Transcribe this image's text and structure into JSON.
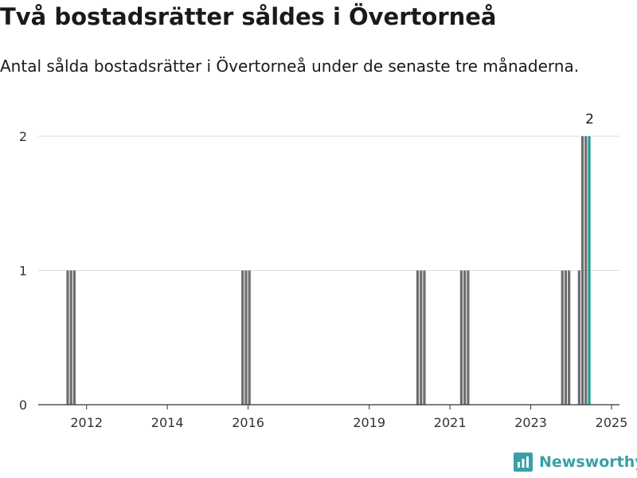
{
  "header": {
    "title": "Två bostadsrätter såldes i Övertorneå",
    "subtitle": "Antal sålda bostadsrätter i Övertorneå under de senaste tre månaderna."
  },
  "brand": {
    "name": "Newsworthy",
    "icon": "newsworthy-logo-icon",
    "color": "#3aa0a6"
  },
  "colors": {
    "bar": "#6d6e71",
    "highlight": "#1a9e8f",
    "grid": "#dddddd",
    "axis": "#333333"
  },
  "chart_data": {
    "type": "bar",
    "xlabel": "",
    "ylabel": "",
    "ylim": [
      0,
      2
    ],
    "grid": true,
    "y_ticks": [
      "0",
      "1",
      "2"
    ],
    "x_ticks": [
      "2012",
      "2014",
      "2016",
      "2019",
      "2021",
      "2023",
      "2025"
    ],
    "series": [
      {
        "values": [
          {
            "x": "2012-01",
            "y": 1
          },
          {
            "x": "2012-02",
            "y": 1
          },
          {
            "x": "2012-03",
            "y": 1
          },
          {
            "x": "2016-05",
            "y": 1
          },
          {
            "x": "2016-06",
            "y": 1
          },
          {
            "x": "2016-07",
            "y": 1
          },
          {
            "x": "2020-09",
            "y": 1
          },
          {
            "x": "2020-10",
            "y": 1
          },
          {
            "x": "2020-11",
            "y": 1
          },
          {
            "x": "2021-10",
            "y": 1
          },
          {
            "x": "2021-11",
            "y": 1
          },
          {
            "x": "2021-12",
            "y": 1
          },
          {
            "x": "2024-04",
            "y": 1
          },
          {
            "x": "2024-05",
            "y": 1
          },
          {
            "x": "2024-06",
            "y": 1
          },
          {
            "x": "2024-09",
            "y": 1
          },
          {
            "x": "2024-10",
            "y": 2
          },
          {
            "x": "2024-11",
            "y": 2
          },
          {
            "x": "2024-12",
            "y": 2,
            "highlight": true
          }
        ]
      }
    ],
    "annotations": [
      {
        "x": "2024-12",
        "text": "2"
      }
    ]
  }
}
